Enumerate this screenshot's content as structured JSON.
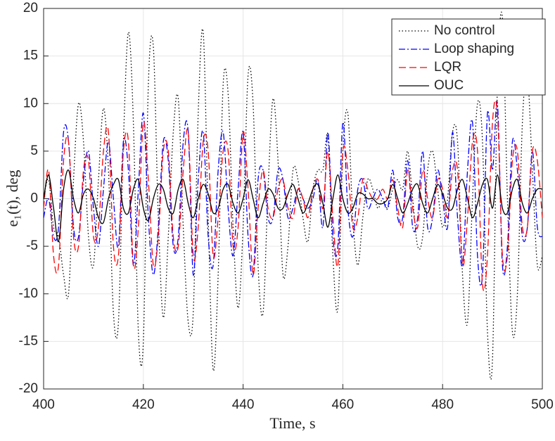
{
  "chart_data": {
    "type": "line",
    "xlabel": "Time, s",
    "ylabel": "e₁(t), deg",
    "x": [
      400,
      401,
      402,
      403,
      404,
      405,
      406,
      407,
      408,
      409,
      410,
      411,
      412,
      413,
      414,
      415,
      416,
      417,
      418,
      419,
      420,
      421,
      422,
      423,
      424,
      425,
      426,
      427,
      428,
      429,
      430,
      431,
      432,
      433,
      434,
      435,
      436,
      437,
      438,
      439,
      440,
      441,
      442,
      443,
      444,
      445,
      446,
      447,
      448,
      449,
      450,
      451,
      452,
      453,
      454,
      455,
      456,
      457,
      458,
      459,
      460,
      461,
      462,
      463,
      464,
      465,
      466,
      467,
      468,
      469,
      470,
      471,
      472,
      473,
      474,
      475,
      476,
      477,
      478,
      479,
      480,
      481,
      482,
      483,
      484,
      485,
      486,
      487,
      488,
      489,
      490,
      491,
      492,
      493,
      494,
      495,
      496,
      497,
      498,
      499,
      500
    ],
    "series": [
      {
        "name": "No control",
        "color": "#000000",
        "dash": "dotted",
        "values": [
          0,
          2,
          -3,
          -4,
          -8,
          -10,
          2,
          10,
          6,
          -4,
          -7,
          2,
          9.5,
          3,
          -12,
          -13,
          6,
          17.5,
          8,
          -14,
          -15,
          12,
          16,
          -2,
          -12.5,
          -4,
          7,
          10.5,
          -3,
          -13,
          -12,
          9,
          17.5,
          -2,
          -18,
          -8,
          12,
          11,
          -3,
          -11.5,
          -3,
          13,
          10,
          -7,
          -12,
          1,
          10.5,
          4,
          -8,
          -5,
          3,
          2,
          -2,
          -4.5,
          1,
          3,
          3,
          6.5,
          -6,
          -11.5,
          5,
          9,
          -2,
          -7,
          -2,
          2,
          1,
          -1,
          0,
          -1,
          1,
          2,
          1,
          5,
          0,
          -5,
          -4,
          3,
          5,
          1,
          -3,
          0,
          7,
          6,
          -8,
          -13,
          0,
          10,
          6,
          -14,
          -17,
          12,
          19,
          0,
          -14,
          -10,
          8,
          13,
          3,
          -7,
          -6
        ]
      },
      {
        "name": "Loop shaping",
        "color": "#0000ff",
        "dash": "dashdot",
        "values": [
          -2,
          0,
          -4,
          -3,
          7,
          6,
          -3,
          -4,
          2,
          5,
          -1,
          -5,
          1,
          6,
          0,
          -5,
          6,
          3,
          -7,
          1,
          9,
          -2,
          -8,
          -3,
          6,
          4,
          -5,
          -4,
          6,
          7,
          -8,
          2,
          7,
          -4,
          -7,
          3,
          7,
          -1,
          -6,
          1,
          7,
          -4,
          -8,
          2,
          3,
          -2,
          -2,
          3,
          2,
          -2,
          -1,
          1,
          0,
          -1,
          0,
          2,
          -3,
          7,
          -4,
          -5,
          8,
          -1,
          -4,
          1,
          2,
          -1,
          0,
          1,
          0,
          -1,
          3,
          -2,
          -2,
          4,
          -3,
          -2,
          5,
          -3,
          -2,
          3,
          0,
          -3,
          7,
          -2,
          -7,
          3,
          8,
          -6,
          -8,
          9,
          3,
          10,
          -7,
          -5,
          6,
          3,
          -4,
          -3,
          5,
          -3,
          -4
        ]
      },
      {
        "name": "LQR",
        "color": "#ff0000",
        "dash": "dashed",
        "values": [
          -1,
          3,
          -6,
          -7,
          4,
          6,
          -4,
          -5,
          3,
          4,
          -4,
          -3,
          5,
          7,
          -5,
          -6,
          5,
          6,
          -7,
          -3,
          8,
          2,
          -7,
          -4,
          5,
          5,
          -4,
          -5,
          3,
          7,
          -6,
          -3,
          6,
          5,
          -6,
          -2,
          5,
          5,
          -5,
          -3,
          7,
          1,
          -8,
          -1,
          3,
          -1,
          -2,
          1,
          2,
          -1,
          -2,
          1,
          0,
          -2,
          1,
          2,
          -1,
          5,
          -2,
          -7,
          5,
          3,
          -3,
          -2,
          2,
          1,
          0,
          0,
          1,
          0,
          2,
          -1,
          -3,
          3,
          -1,
          -3,
          3,
          0,
          -2,
          2,
          1,
          -2,
          3,
          3,
          -7,
          -2,
          6,
          5,
          -9,
          -6,
          8,
          9,
          -6,
          -6,
          4,
          5,
          -3,
          -3,
          5,
          4,
          -2
        ]
      },
      {
        "name": "OUC",
        "color": "#000000",
        "dash": "solid",
        "values": [
          0,
          2.5,
          -1,
          -4.5,
          1,
          3,
          0,
          -1.5,
          0.5,
          1,
          0,
          -2,
          -2.5,
          0,
          1.5,
          2,
          -1,
          -1.5,
          1,
          2,
          -1,
          -2.3,
          0,
          1.5,
          1,
          -1,
          -1.5,
          1,
          2,
          -0.5,
          -2,
          0,
          1.5,
          0.5,
          -1.5,
          -1,
          1,
          1.5,
          -0.5,
          -1.5,
          0,
          2,
          0,
          -2,
          -0.5,
          1,
          0.5,
          -1,
          -1,
          0.5,
          1.5,
          0,
          -1.5,
          -0.5,
          1,
          1.5,
          -0.5,
          -3,
          0,
          2.5,
          0,
          -1.5,
          -1,
          0.5,
          0.5,
          0,
          0,
          -0.5,
          -0.5,
          0,
          1.5,
          0,
          -1.5,
          -0.5,
          1,
          1.5,
          -0.5,
          -1.5,
          0,
          1.5,
          0.5,
          -1,
          -1,
          1,
          2,
          0,
          -2,
          -0.5,
          1.5,
          2,
          -1,
          2.5,
          -1,
          -1.5,
          1,
          2,
          -0.5,
          -1.5,
          0,
          1,
          1
        ]
      }
    ],
    "xlim": [
      400,
      500
    ],
    "xticks": [
      400,
      420,
      440,
      460,
      480,
      500
    ],
    "ylim": [
      -20,
      20
    ],
    "yticks": [
      -20,
      -15,
      -10,
      -5,
      0,
      5,
      10,
      15,
      20
    ],
    "grid": true,
    "legend": "upper right"
  }
}
